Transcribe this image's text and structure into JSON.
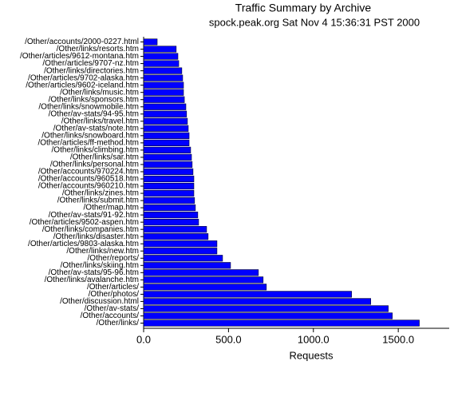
{
  "chart_data": {
    "type": "hbar",
    "title": "Traffic Summary by Archive",
    "subtitle": "spock.peak.org Sat Nov  4 15:36:31 PST 2000",
    "x_label": "Requests",
    "color": "#0000ff",
    "categories": [
      "/Other/accounts/2000-0227.html",
      "/Other/links/resorts.htm",
      "/Other/articles/9612-montana.htm",
      "/Other/articles/9707-nz.htm",
      "/Other/links/directories.htm",
      "/Other/articles/9702-alaska.htm",
      "/Other/articles/9602-iceland.htm",
      "/Other/links/music.htm",
      "/Other/links/sponsors.htm",
      "/Other/links/snowmobile.htm",
      "/Other/av-stats/94-95.htm",
      "/Other/links/travel.htm",
      "/Other/av-stats/note.htm",
      "/Other/links/snowboard.htm",
      "/Other/articles/ff-method.htm",
      "/Other/links/climbing.htm",
      "/Other/links/sar.htm",
      "/Other/links/personal.htm",
      "/Other/accounts/970224.htm",
      "/Other/accounts/960518.htm",
      "/Other/accounts/960210.htm",
      "/Other/links/zines.htm",
      "/Other/links/submit.htm",
      "/Other/map.htm",
      "/Other/av-stats/91-92.htm",
      "/Other/articles/9502-aspen.htm",
      "/Other/links/companies.htm",
      "/Other/links/disaster.htm",
      "/Other/articles/9803-alaska.htm",
      "/Other/links/new.htm",
      "/Other/reports/",
      "/Other/links/skiing.htm",
      "/Other/av-stats/95-96.htm",
      "/Other/links/avalanche.htm",
      "/Other/articles/",
      "/Other/photos/",
      "/Other/discussion.html",
      "/Other/av-stats/",
      "/Other/accounts/",
      "/Other/links/"
    ],
    "values": [
      80,
      192,
      202,
      207,
      225,
      230,
      235,
      235,
      240,
      249,
      253,
      258,
      263,
      268,
      268,
      277,
      282,
      286,
      291,
      296,
      296,
      296,
      300,
      305,
      319,
      324,
      371,
      380,
      432,
      432,
      465,
      512,
      676,
      704,
      723,
      1225,
      1338,
      1441,
      1465,
      1624
    ],
    "xlim": [
      0,
      1800
    ],
    "xticks": [
      {
        "value": 0,
        "label": "0.0"
      },
      {
        "value": 500,
        "label": "500.0"
      },
      {
        "value": 1000,
        "label": "1000.0"
      },
      {
        "value": 1500,
        "label": "1500.0"
      }
    ]
  }
}
